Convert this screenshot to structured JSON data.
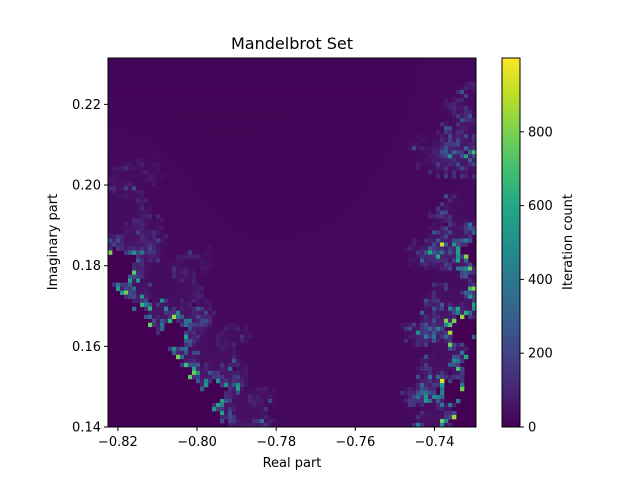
{
  "chart_data": {
    "type": "heatmap",
    "title": "Mandelbrot Set",
    "xlabel": "Real part",
    "ylabel": "Imaginary part",
    "xlim": [
      -0.8225,
      -0.7295
    ],
    "ylim": [
      0.14,
      0.2315
    ],
    "xticks": [
      -0.82,
      -0.8,
      -0.78,
      -0.76,
      -0.74
    ],
    "xtick_labels": [
      "−0.82",
      "−0.80",
      "−0.78",
      "−0.76",
      "−0.74"
    ],
    "yticks": [
      0.14,
      0.16,
      0.18,
      0.2,
      0.22
    ],
    "ytick_labels": [
      "0.14",
      "0.16",
      "0.18",
      "0.20",
      "0.22"
    ],
    "colormap": "viridis",
    "colorbar": {
      "label": "Iteration count",
      "range": [
        0,
        1000
      ],
      "ticks": [
        0,
        200,
        400,
        600,
        800
      ],
      "tick_labels": [
        "0",
        "200",
        "400",
        "600",
        "800"
      ]
    },
    "grid": false,
    "colors": {
      "interior": "#440154",
      "background": "#ffffff"
    }
  }
}
